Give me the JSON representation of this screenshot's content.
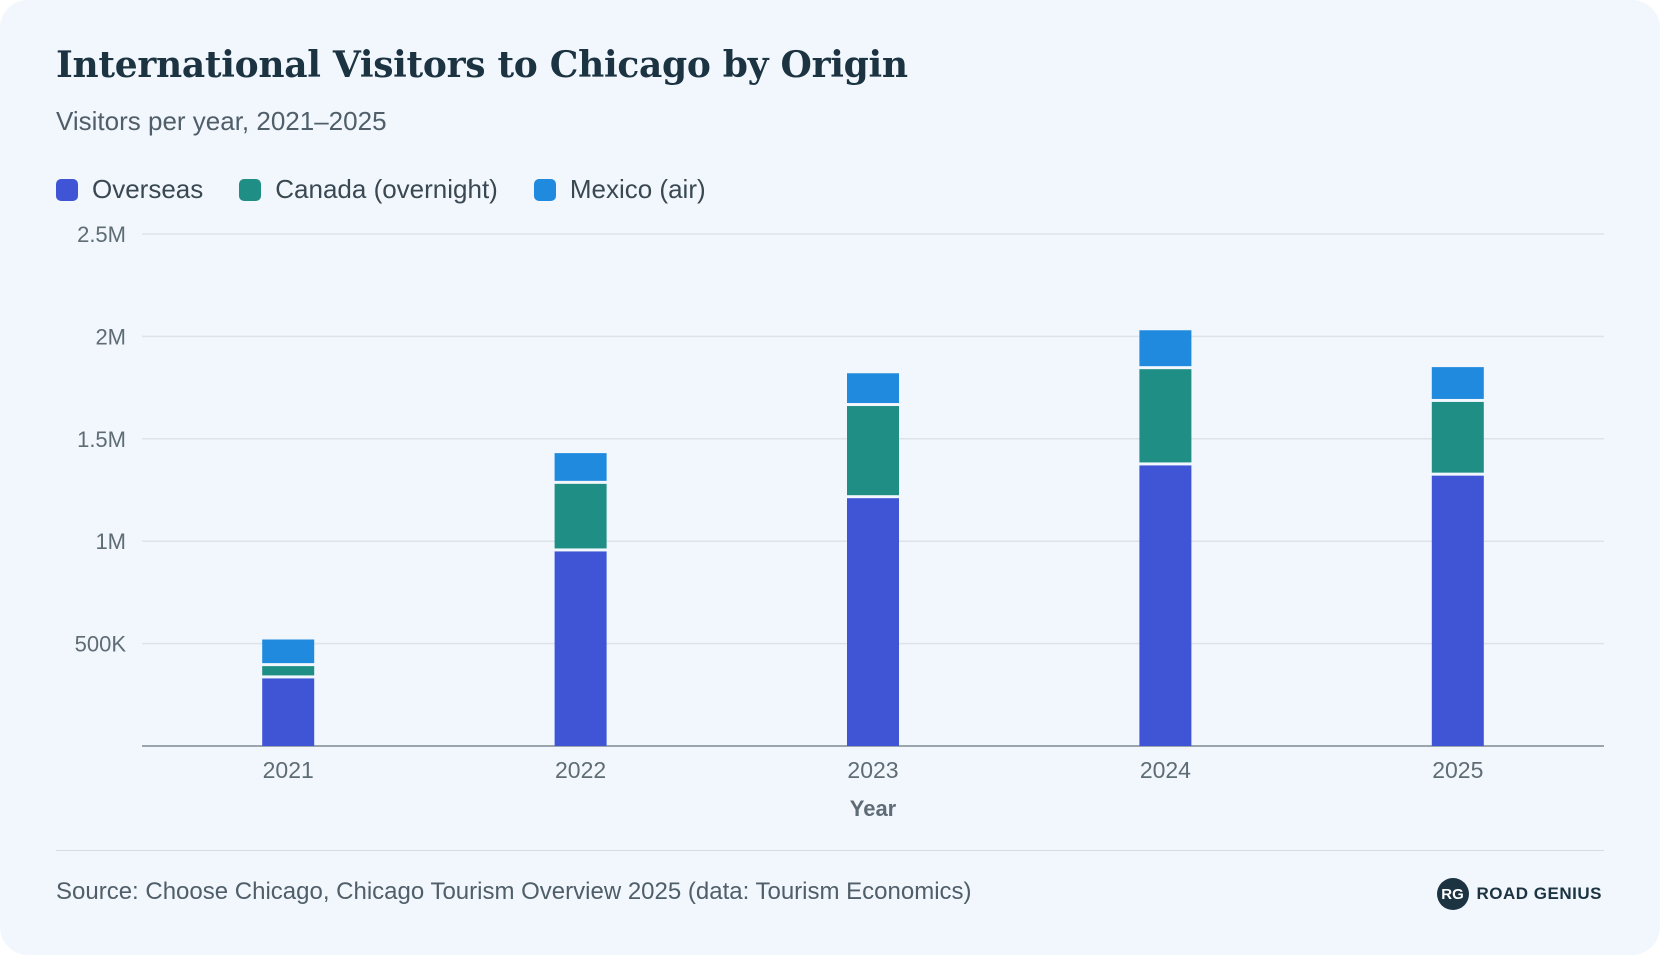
{
  "title": "International Visitors to Chicago by Origin",
  "subtitle": "Visitors per year, 2021–2025",
  "source": "Source: Choose Chicago, Chicago Tourism Overview 2025 (data: Tourism Economics)",
  "brand": {
    "logo_text": "RG",
    "name": "ROAD GENIUS"
  },
  "chart_data": {
    "type": "bar",
    "stacked": true,
    "xlabel": "Year",
    "ylabel": "",
    "categories": [
      "2021",
      "2022",
      "2023",
      "2024",
      "2025"
    ],
    "ylim": [
      0,
      2500000
    ],
    "yticks": [
      500000,
      1000000,
      1500000,
      2000000,
      2500000
    ],
    "ytick_labels": [
      "500K",
      "1M",
      "1.5M",
      "2M",
      "2.5M"
    ],
    "grid": true,
    "legend_position": "top-left",
    "series": [
      {
        "name": "Overseas",
        "color": "#3f55d6",
        "values": [
          330000,
          950000,
          1210000,
          1370000,
          1320000
        ]
      },
      {
        "name": "Canada (overnight)",
        "color": "#1f8f86",
        "values": [
          60000,
          330000,
          450000,
          470000,
          360000
        ]
      },
      {
        "name": "Mexico (air)",
        "color": "#1f8ade",
        "values": [
          130000,
          150000,
          160000,
          190000,
          170000
        ]
      }
    ]
  }
}
